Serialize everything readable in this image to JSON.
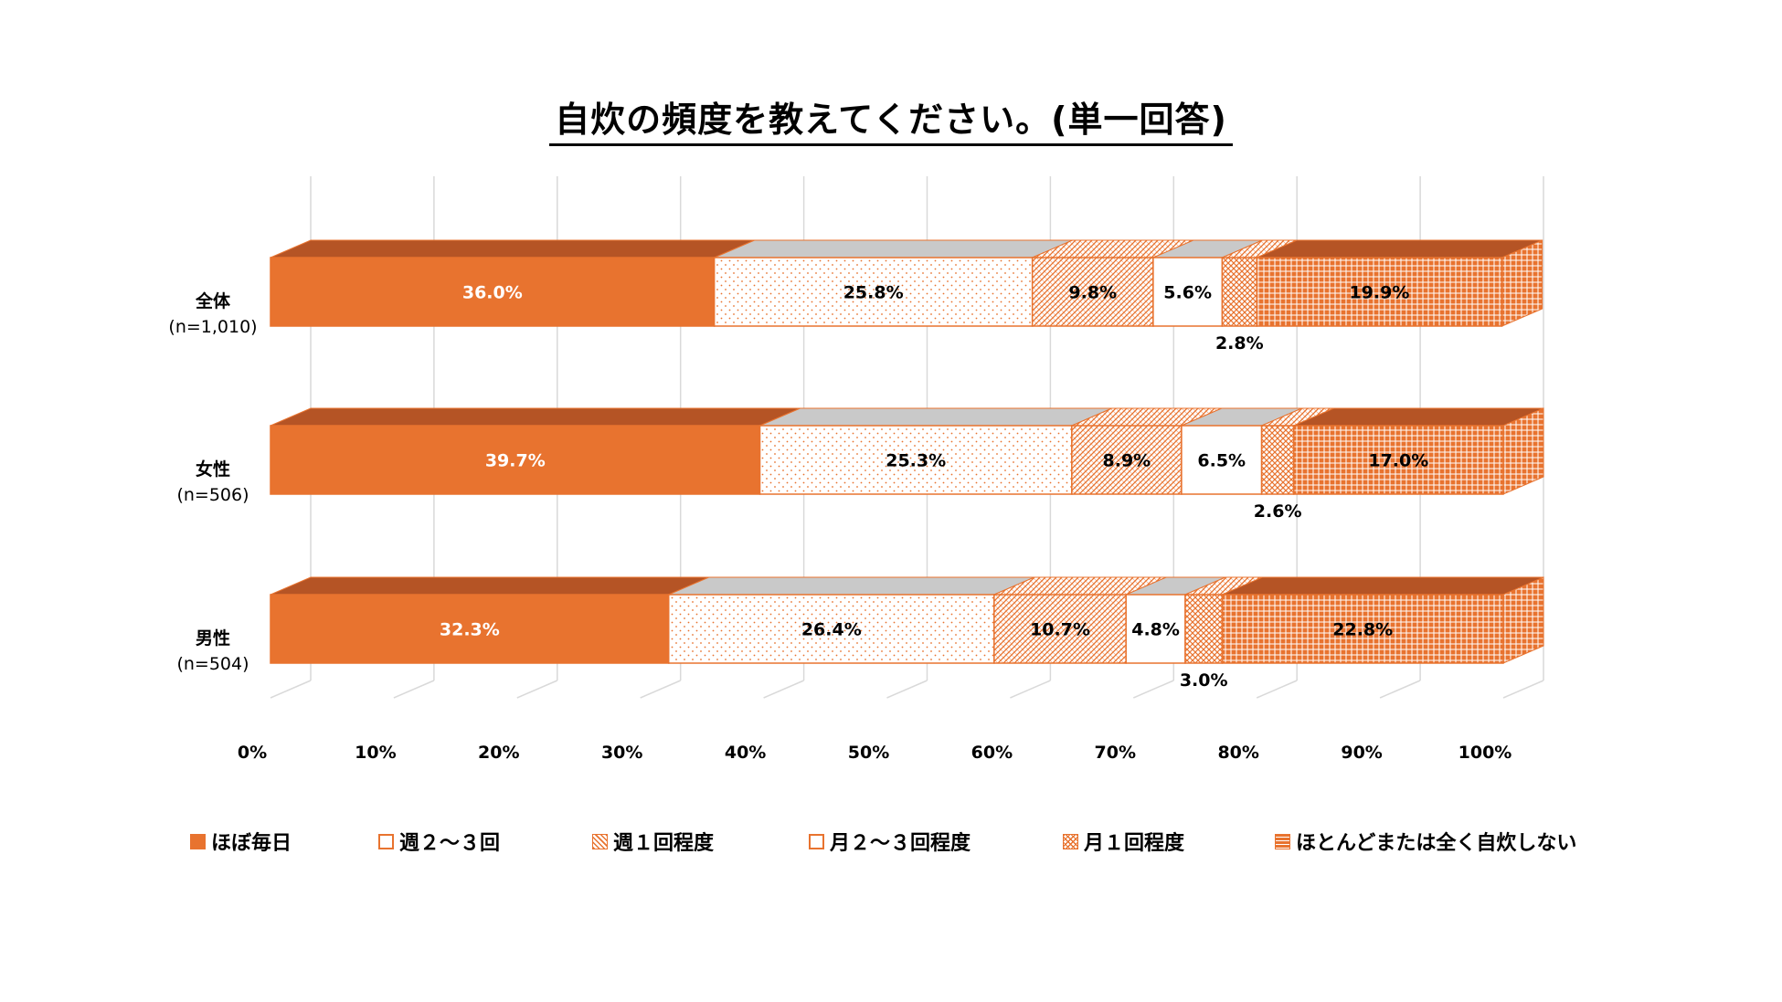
{
  "title": "自炊の頻度を教えてください。(単一回答)",
  "chart_data": {
    "type": "bar",
    "orientation": "horizontal",
    "stacked": "100%",
    "three_d": true,
    "categories": [
      {
        "name": "全体",
        "n": "(n=1,010)"
      },
      {
        "name": "女性",
        "n": "(n=506)"
      },
      {
        "name": "男性",
        "n": "(n=504)"
      }
    ],
    "series": [
      {
        "name": "ほぼ毎日",
        "values": [
          36.0,
          39.7,
          32.3
        ],
        "labels": [
          "36.0%",
          "39.7%",
          "32.3%"
        ],
        "fill": "solid"
      },
      {
        "name": "週２～３回",
        "values": [
          25.8,
          25.3,
          26.4
        ],
        "labels": [
          "25.8%",
          "25.3%",
          "26.4%"
        ],
        "fill": "dots"
      },
      {
        "name": "週１回程度",
        "values": [
          9.8,
          8.9,
          10.7
        ],
        "labels": [
          "9.8%",
          "8.9%",
          "10.7%"
        ],
        "fill": "diag"
      },
      {
        "name": "月２～３回程度",
        "values": [
          5.6,
          6.5,
          4.8
        ],
        "labels": [
          "5.6%",
          "6.5%",
          "4.8%"
        ],
        "fill": "white"
      },
      {
        "name": "月１回程度",
        "values": [
          2.8,
          2.6,
          3.0
        ],
        "labels": [
          "2.8%",
          "2.6%",
          "3.0%"
        ],
        "fill": "cross"
      },
      {
        "name": "ほとんどまたは全く自炊しない",
        "values": [
          19.9,
          17.0,
          22.8
        ],
        "labels": [
          "19.9%",
          "17.0%",
          "22.8%"
        ],
        "fill": "grid"
      }
    ],
    "xticks": [
      "0%",
      "10%",
      "20%",
      "30%",
      "40%",
      "50%",
      "60%",
      "70%",
      "80%",
      "90%",
      "100%"
    ],
    "xlim": [
      0,
      100
    ],
    "gridlines": true,
    "legend_position": "bottom"
  },
  "colors": {
    "accent": "#E8732F",
    "accent_dark": "#B55425",
    "side_shade": "#C9C9C9",
    "grid": "#D9D9D9"
  }
}
